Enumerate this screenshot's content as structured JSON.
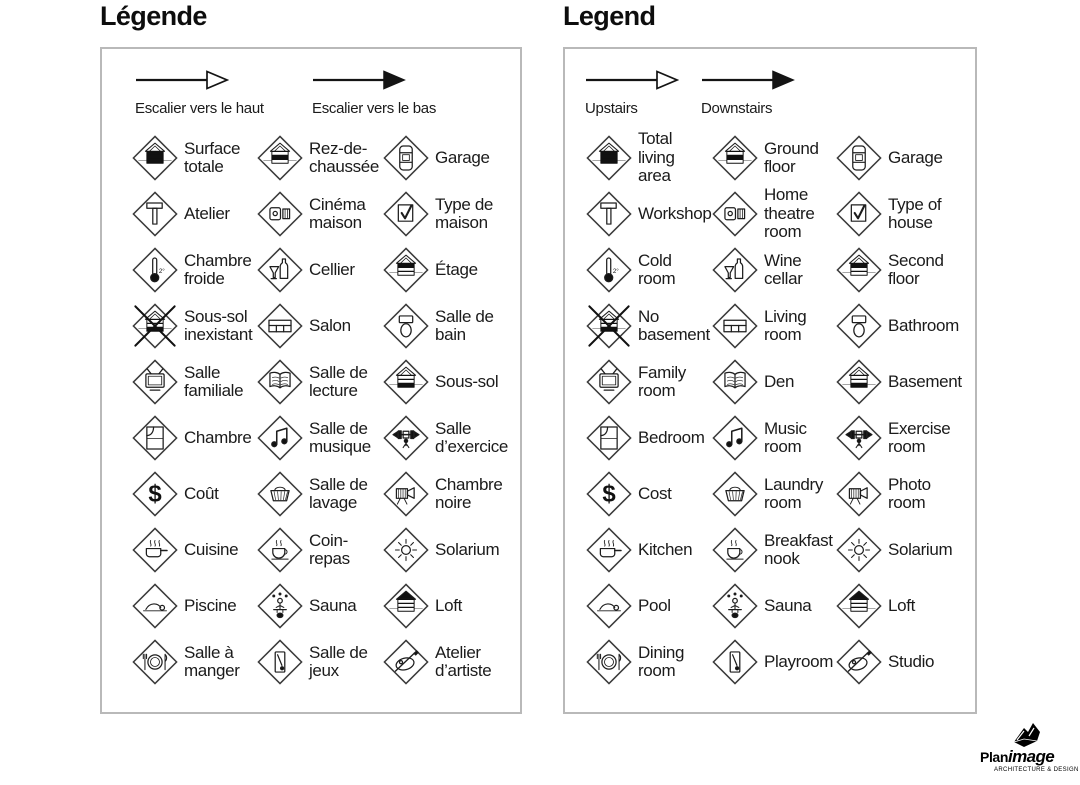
{
  "colors": {
    "ink": "#1b1b1b",
    "panel_border": "#b9b9b9",
    "background": "#ffffff",
    "icon_stroke": "#1d1d1d"
  },
  "panels": [
    {
      "title": "Légende",
      "arrows": [
        {
          "type": "outline",
          "label": "Escalier vers le haut"
        },
        {
          "type": "filled",
          "label": "Escalier vers le bas"
        }
      ],
      "items": [
        {
          "icon": "house-total",
          "label": "Surface\ntotale"
        },
        {
          "icon": "house-ground",
          "label": "Rez-de-\nchaussée"
        },
        {
          "icon": "car",
          "label": "Garage"
        },
        {
          "icon": "hammer",
          "label": "Atelier"
        },
        {
          "icon": "projector",
          "label": "Cinéma\nmaison"
        },
        {
          "icon": "checkbox",
          "label": "Type de\nmaison"
        },
        {
          "icon": "thermometer",
          "label": "Chambre\nfroide"
        },
        {
          "icon": "wine",
          "label": "Cellier"
        },
        {
          "icon": "house-second",
          "label": "Étage"
        },
        {
          "icon": "house-crossed",
          "label": "Sous-sol\ninexistant"
        },
        {
          "icon": "sofa",
          "label": "Salon"
        },
        {
          "icon": "toilet",
          "label": "Salle de\nbain"
        },
        {
          "icon": "tv",
          "label": "Salle\nfamiliale"
        },
        {
          "icon": "open-book",
          "label": "Salle de\nlecture"
        },
        {
          "icon": "house-basement",
          "label": "Sous-sol"
        },
        {
          "icon": "bed",
          "label": "Chambre"
        },
        {
          "icon": "music-notes",
          "label": "Salle de\nmusique"
        },
        {
          "icon": "barbell",
          "label": "Salle\nd’exercice"
        },
        {
          "icon": "dollar",
          "label": "Coût"
        },
        {
          "icon": "laundry-basket",
          "label": "Salle de\nlavage"
        },
        {
          "icon": "movie-camera",
          "label": "Chambre\nnoire"
        },
        {
          "icon": "cooking-pot",
          "label": "Cuisine"
        },
        {
          "icon": "coffee-cup",
          "label": "Coin-\nrepas"
        },
        {
          "icon": "sun",
          "label": "Solarium"
        },
        {
          "icon": "swimmer",
          "label": "Piscine"
        },
        {
          "icon": "sauna",
          "label": "Sauna"
        },
        {
          "icon": "house-loft",
          "label": "Loft"
        },
        {
          "icon": "plate-cutlery",
          "label": "Salle à\nmanger"
        },
        {
          "icon": "game",
          "label": "Salle de\njeux"
        },
        {
          "icon": "palette",
          "label": "Atelier\nd’artiste"
        }
      ]
    },
    {
      "title": "Legend",
      "arrows": [
        {
          "type": "outline",
          "label": "Upstairs"
        },
        {
          "type": "filled",
          "label": "Downstairs"
        }
      ],
      "items": [
        {
          "icon": "house-total",
          "label": "Total\nliving\narea"
        },
        {
          "icon": "house-ground",
          "label": "Ground\nfloor"
        },
        {
          "icon": "car",
          "label": "Garage"
        },
        {
          "icon": "hammer",
          "label": "Workshop"
        },
        {
          "icon": "projector",
          "label": "Home\ntheatre\nroom"
        },
        {
          "icon": "checkbox",
          "label": "Type of\nhouse"
        },
        {
          "icon": "thermometer",
          "label": "Cold\nroom"
        },
        {
          "icon": "wine",
          "label": "Wine\ncellar"
        },
        {
          "icon": "house-second",
          "label": "Second\nfloor"
        },
        {
          "icon": "house-crossed",
          "label": "No\nbasement"
        },
        {
          "icon": "sofa",
          "label": "Living\nroom"
        },
        {
          "icon": "toilet",
          "label": "Bathroom"
        },
        {
          "icon": "tv",
          "label": "Family\nroom"
        },
        {
          "icon": "open-book",
          "label": "Den"
        },
        {
          "icon": "house-basement",
          "label": "Basement"
        },
        {
          "icon": "bed",
          "label": "Bedroom"
        },
        {
          "icon": "music-notes",
          "label": "Music\nroom"
        },
        {
          "icon": "barbell",
          "label": "Exercise\nroom"
        },
        {
          "icon": "dollar",
          "label": "Cost"
        },
        {
          "icon": "laundry-basket",
          "label": "Laundry\nroom"
        },
        {
          "icon": "movie-camera",
          "label": "Photo\nroom"
        },
        {
          "icon": "cooking-pot",
          "label": "Kitchen"
        },
        {
          "icon": "coffee-cup",
          "label": "Breakfast\nnook"
        },
        {
          "icon": "sun",
          "label": "Solarium"
        },
        {
          "icon": "swimmer",
          "label": "Pool"
        },
        {
          "icon": "sauna",
          "label": "Sauna"
        },
        {
          "icon": "house-loft",
          "label": "Loft"
        },
        {
          "icon": "plate-cutlery",
          "label": "Dining\nroom"
        },
        {
          "icon": "game",
          "label": "Playroom"
        },
        {
          "icon": "palette",
          "label": "Studio"
        }
      ]
    }
  ],
  "logo": {
    "brand_bold": "Plan",
    "brand_italic": "image",
    "tagline": "ARCHITECTURE & DESIGN"
  }
}
